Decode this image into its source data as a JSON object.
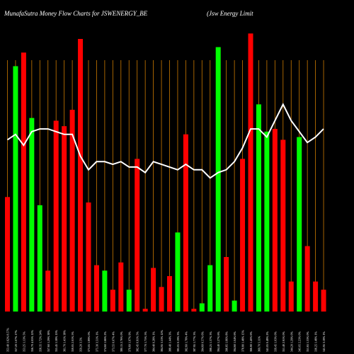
{
  "header": {
    "left_title": "MunafaSutra  Money Flow  Charts for JSWENERGY_BE",
    "right_title": "(Jsw  Energy Limit"
  },
  "chart_data": {
    "type": "bar",
    "title": "MunafaSutra  Money Flow  Charts for JSWENERGY_BE",
    "colors": {
      "background": "#000000",
      "up_bar": "#00ff00",
      "down_bar": "#ff0000",
      "line": "#ffffff",
      "grid": "#cc7a00",
      "tick_text": "#ffffff"
    },
    "grid": true,
    "ylim": [
      0,
      100
    ],
    "categories": [
      "353.40 1.62% 8.57%",
      "357.20 1.07% 17%",
      "353.25 1.13% 5%",
      "356.70 4.05% 12%",
      "358.35 1.72% 24%",
      "357.60 1.29% 38%",
      "355.45 1.58% 15%",
      "361.70 1.41% 38%",
      "359.05 2.01% 5%",
      "359.20 3.5%",
      "373.05 1.89% 0%",
      "375.30 3.51% 1%",
      "374.60 1.66% 2%",
      "373.55 0.07% 4%",
      "380.15 2.76% 0%",
      "379.60 1.97% 9%",
      "382.45 0.91% 5%",
      "377.70 1.75% 5%",
      "384.40 0.28% 1%",
      "384.95 3.53% 12%",
      "388.40 1.44% 3%",
      "385.05 0.19% 3%",
      "382.60 1.78% 4%",
      "387.95 1.77% 3%",
      "394.60 0.57% 6%",
      "398.25 1.37% 3%",
      "394.40 1.27% 6%",
      "396.85 1.66% 8%",
      "394.60 1.04% 6%",
      "378.80 1.48% 15%",
      "366.80 1.40% 6%",
      "369.70 5.11%",
      "341.05 0.48% 2%",
      "339.45 1.03% 0%",
      "351.40 2.91% 0%",
      "344.20 1.29% 0%",
      "343.05 2.23% 0%",
      "351.65 1.33% 0%",
      "336.25 1.48% 1%",
      "341.95 3.18% 1%"
    ],
    "direction": [
      "down",
      "up",
      "down",
      "up",
      "up",
      "down",
      "down",
      "down",
      "down",
      "down",
      "down",
      "down",
      "up",
      "down",
      "down",
      "up",
      "down",
      "down",
      "down",
      "down",
      "down",
      "up",
      "down",
      "down",
      "up",
      "up",
      "up",
      "down",
      "up",
      "down",
      "down",
      "up",
      "up",
      "down",
      "down",
      "down",
      "up",
      "down",
      "down",
      "down"
    ],
    "values": [
      42,
      90,
      95,
      71,
      39,
      15,
      70,
      68,
      74,
      100,
      40,
      17,
      15,
      8,
      18,
      8,
      56,
      1,
      16,
      9,
      13,
      29,
      65,
      1,
      3,
      17,
      97,
      20,
      4,
      56,
      102,
      76,
      66,
      67,
      63,
      11,
      64,
      24,
      11,
      8
    ],
    "line": [
      63,
      65,
      61,
      66,
      67,
      67,
      66,
      65,
      65,
      57,
      52,
      55,
      55,
      54,
      55,
      53,
      53,
      51,
      55,
      54,
      53,
      52,
      54,
      52,
      52,
      49,
      51,
      52,
      55,
      60,
      67,
      67,
      64,
      70,
      76,
      70,
      66,
      62,
      64,
      67
    ]
  }
}
